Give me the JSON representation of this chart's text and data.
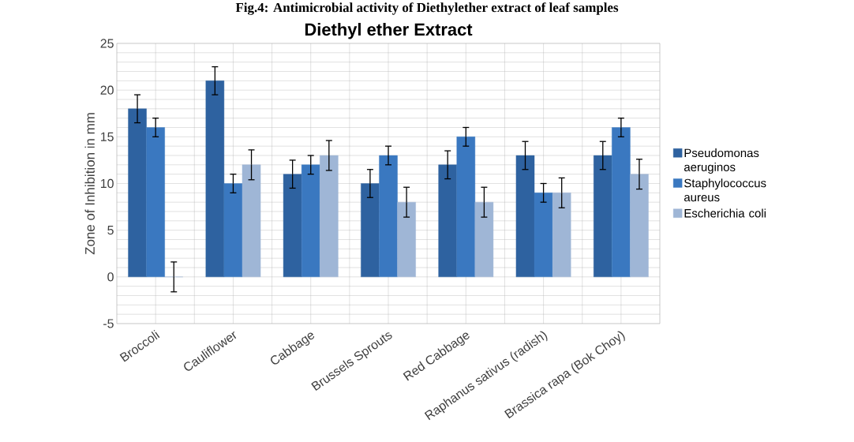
{
  "chart_data": {
    "type": "bar",
    "title": "Diethyl ether Extract",
    "annotations": [
      "Fig.4: Antimicrobial activity of Diethylether extract of leaf samples"
    ],
    "ylabel": "Zone of Inhibition in mm",
    "categories": [
      "Broccoli",
      "Cauliflower",
      "Cabbage",
      "Brussels Sprouts",
      "Red Cabbage",
      "Raphanus sativus (radish)",
      "Brassica rapa (Bok Choy)"
    ],
    "series": [
      {
        "name": "Pseudomonas aeruginos",
        "color": "#2e62a0",
        "values": [
          18,
          21,
          11,
          10,
          12,
          13,
          13
        ],
        "errors": [
          1.5,
          1.5,
          1.5,
          1.5,
          1.5,
          1.5,
          1.5
        ]
      },
      {
        "name": "Staphylococcus aureus",
        "color": "#3a78c0",
        "values": [
          16,
          10,
          12,
          13,
          15,
          9,
          16
        ],
        "errors": [
          1,
          1,
          1,
          1,
          1,
          1,
          1
        ]
      },
      {
        "name": "Escherichia coli",
        "color": "#9fb6d6",
        "values": [
          0,
          12,
          13,
          8,
          8,
          9,
          11
        ],
        "errors": [
          1.6,
          1.6,
          1.6,
          1.6,
          1.6,
          1.6,
          1.6
        ]
      }
    ],
    "ylim": [
      -5,
      25
    ],
    "yticks": [
      -5,
      0,
      5,
      10,
      15,
      20,
      25
    ],
    "grid": true,
    "legend": "right"
  }
}
